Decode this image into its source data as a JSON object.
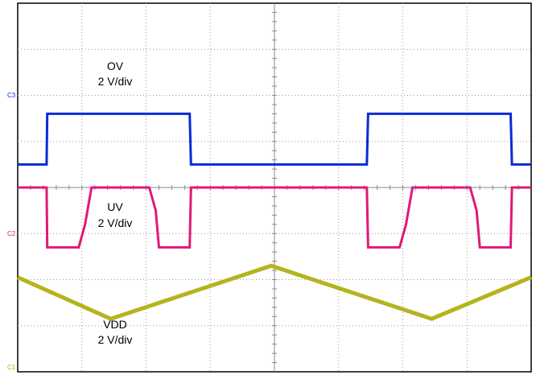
{
  "chart_data": {
    "type": "line",
    "title": "",
    "xlabel": "",
    "ylabel": "",
    "grid": true,
    "divisions": {
      "x": 8,
      "y": 8
    },
    "series": [
      {
        "name": "OV",
        "channel": "C3",
        "scale": "2 V/div",
        "color": "#0a2bd6",
        "x": [
          0,
          0.45,
          0.46,
          2.68,
          2.7,
          5.44,
          5.46,
          7.68,
          7.7,
          8
        ],
        "y": [
          0.5,
          0.5,
          1.6,
          1.6,
          0.5,
          0.5,
          1.6,
          1.6,
          0.5,
          0.5
        ]
      },
      {
        "name": "UV",
        "channel": "C2",
        "scale": "2 V/div",
        "color": "#e0187a",
        "x": [
          0,
          0.45,
          0.46,
          0.95,
          1.05,
          1.15,
          2.05,
          2.15,
          2.2,
          2.68,
          2.7,
          5.44,
          5.46,
          5.95,
          6.05,
          6.15,
          7.05,
          7.15,
          7.2,
          7.68,
          7.7,
          8
        ],
        "y": [
          0.0,
          0.0,
          -1.3,
          -1.3,
          -0.8,
          0.0,
          0.0,
          -0.5,
          -1.3,
          -1.3,
          0.0,
          0.0,
          -1.3,
          -1.3,
          -0.8,
          0.0,
          0.0,
          -0.5,
          -1.3,
          -1.3,
          0.0,
          0.0
        ]
      },
      {
        "name": "VDD",
        "channel": "C1",
        "scale": "2 V/div",
        "color": "#b5b31f",
        "x": [
          0,
          1.45,
          3.95,
          6.45,
          8
        ],
        "y": [
          -1.95,
          -2.85,
          -1.7,
          -2.85,
          -1.95
        ]
      }
    ],
    "annotations": [
      {
        "name": "OV",
        "scale": "2 V/div"
      },
      {
        "name": "UV",
        "scale": "2 V/div"
      },
      {
        "name": "VDD",
        "scale": "2 V/div"
      }
    ]
  }
}
